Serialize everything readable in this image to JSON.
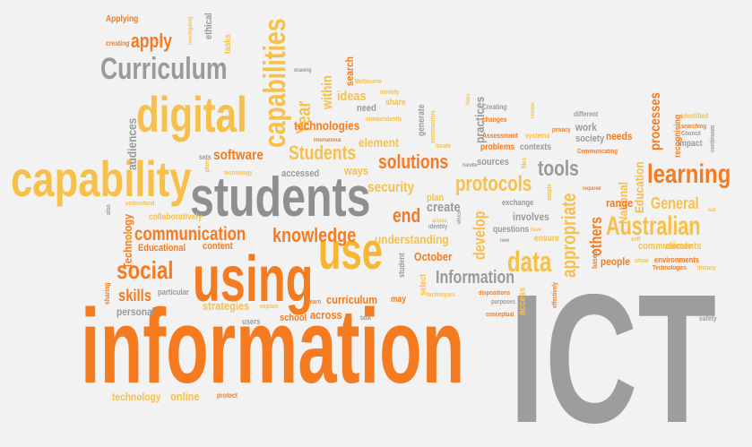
{
  "colors": {
    "background": "#f2f2f2",
    "orange": "#f47b20",
    "dark_orange": "#e8650a",
    "yellow": "#f7c04a",
    "light_yellow": "#f5d07a",
    "gray": "#9a9a9a",
    "dark_gray": "#8a8a8a"
  },
  "words": [
    {
      "text": "information",
      "color": "#f47b20"
    },
    {
      "text": "ICT",
      "color": "#9d9d9d"
    },
    {
      "text": "students",
      "color": "#8f8f8f"
    },
    {
      "text": "capability",
      "color": "#f7c04a"
    },
    {
      "text": "using",
      "color": "#f47b20"
    },
    {
      "text": "use",
      "color": "#f7b733"
    },
    {
      "text": "digital",
      "color": "#f7c04a"
    },
    {
      "text": "Curriculum",
      "color": "#9a9a9a"
    },
    {
      "text": "capabilities",
      "color": "#f7c04a"
    },
    {
      "text": "learning",
      "color": "#f47b20"
    },
    {
      "text": "Australian",
      "color": "#f7c04a"
    },
    {
      "text": "data",
      "color": "#f7c04a"
    },
    {
      "text": "social",
      "color": "#f47b20"
    },
    {
      "text": "solutions",
      "color": "#f47b20"
    },
    {
      "text": "knowledge",
      "color": "#f47b20"
    },
    {
      "text": "communication",
      "color": "#f47b20"
    },
    {
      "text": "protocols",
      "color": "#f7c04a"
    },
    {
      "text": "tools",
      "color": "#9a9a9a"
    },
    {
      "text": "Information",
      "color": "#9a9a9a"
    },
    {
      "text": "Students",
      "color": "#f7c04a"
    },
    {
      "text": "appropriate",
      "color": "#f7c04a"
    },
    {
      "text": "software",
      "color": "#f47b20"
    },
    {
      "text": "security",
      "color": "#f7c04a"
    },
    {
      "text": "end",
      "color": "#f47b20"
    },
    {
      "text": "apply",
      "color": "#f47b20"
    },
    {
      "text": "others",
      "color": "#f47b20"
    },
    {
      "text": "General",
      "color": "#f7c04a"
    },
    {
      "text": "develop",
      "color": "#f7c04a"
    },
    {
      "text": "skills",
      "color": "#f47b20"
    },
    {
      "text": "Year",
      "color": "#f7c04a"
    },
    {
      "text": "processes",
      "color": "#f47b20"
    },
    {
      "text": "Education",
      "color": "#f7c04a"
    },
    {
      "text": "National",
      "color": "#f7c04a"
    },
    {
      "text": "technologies",
      "color": "#f47b20"
    },
    {
      "text": "create",
      "color": "#9a9a9a"
    },
    {
      "text": "understanding",
      "color": "#f7c04a"
    },
    {
      "text": "curriculum",
      "color": "#f47b20"
    },
    {
      "text": "across",
      "color": "#f47b20"
    },
    {
      "text": "strategies",
      "color": "#f7c04a"
    },
    {
      "text": "online",
      "color": "#f7c04a"
    },
    {
      "text": "technology",
      "color": "#f7c04a"
    },
    {
      "text": "personal",
      "color": "#9a9a9a"
    },
    {
      "text": "Technology",
      "color": "#f47b20"
    },
    {
      "text": "Educational",
      "color": "#f47b20"
    },
    {
      "text": "collaboratively",
      "color": "#f7c04a"
    },
    {
      "text": "content",
      "color": "#f47b20"
    },
    {
      "text": "audiences",
      "color": "#9a9a9a"
    },
    {
      "text": "within",
      "color": "#f7c04a"
    },
    {
      "text": "ideas",
      "color": "#f7c04a"
    },
    {
      "text": "element",
      "color": "#f7c04a"
    },
    {
      "text": "practices",
      "color": "#9a9a9a"
    },
    {
      "text": "October",
      "color": "#f47b20"
    },
    {
      "text": "involves",
      "color": "#9a9a9a"
    },
    {
      "text": "range",
      "color": "#f47b20"
    },
    {
      "text": "people",
      "color": "#f47b20"
    },
    {
      "text": "communicate",
      "color": "#f7c04a"
    },
    {
      "text": "elements",
      "color": "#f7c04a"
    },
    {
      "text": "environments",
      "color": "#f47b20"
    },
    {
      "text": "needs",
      "color": "#f47b20"
    },
    {
      "text": "society",
      "color": "#9a9a9a"
    },
    {
      "text": "work",
      "color": "#9a9a9a"
    },
    {
      "text": "impact",
      "color": "#9a9a9a"
    },
    {
      "text": "recognising",
      "color": "#f47b20"
    },
    {
      "text": "sources",
      "color": "#9a9a9a"
    },
    {
      "text": "contexts",
      "color": "#9a9a9a"
    },
    {
      "text": "problems",
      "color": "#f47b20"
    },
    {
      "text": "ways",
      "color": "#f7c04a"
    },
    {
      "text": "accessed",
      "color": "#9a9a9a"
    },
    {
      "text": "need",
      "color": "#9a9a9a"
    },
    {
      "text": "ethical",
      "color": "#9a9a9a"
    },
    {
      "text": "search",
      "color": "#f47b20"
    },
    {
      "text": "share",
      "color": "#f7c04a"
    },
    {
      "text": "plan",
      "color": "#f7c04a"
    },
    {
      "text": "generate",
      "color": "#9a9a9a"
    },
    {
      "text": "questions",
      "color": "#9a9a9a"
    },
    {
      "text": "exchange",
      "color": "#9a9a9a"
    },
    {
      "text": "ensure",
      "color": "#f7c04a"
    },
    {
      "text": "access",
      "color": "#f7c04a"
    },
    {
      "text": "select",
      "color": "#f7c04a"
    },
    {
      "text": "may",
      "color": "#f47b20"
    },
    {
      "text": "school",
      "color": "#f47b20"
    },
    {
      "text": "users",
      "color": "#9a9a9a"
    },
    {
      "text": "particular",
      "color": "#9a9a9a"
    },
    {
      "text": "sharing",
      "color": "#f47b20"
    },
    {
      "text": "protect",
      "color": "#f47b20"
    },
    {
      "text": "safety",
      "color": "#9a9a9a"
    },
    {
      "text": "Applying",
      "color": "#f47b20"
    },
    {
      "text": "creating",
      "color": "#f47b20"
    },
    {
      "text": "tasks",
      "color": "#f7c04a"
    },
    {
      "text": "Creating",
      "color": "#9a9a9a"
    },
    {
      "text": "changes",
      "color": "#f47b20"
    },
    {
      "text": "different",
      "color": "#9a9a9a"
    },
    {
      "text": "Assessment",
      "color": "#f47b20"
    },
    {
      "text": "systems",
      "color": "#f7c04a"
    },
    {
      "text": "Communicating",
      "color": "#f47b20"
    },
    {
      "text": "identified",
      "color": "#f7c04a"
    },
    {
      "text": "searching",
      "color": "#f47b20"
    },
    {
      "text": "Council",
      "color": "#9a9a9a"
    },
    {
      "text": "continuum",
      "color": "#9a9a9a"
    },
    {
      "text": "privacy",
      "color": "#f47b20"
    },
    {
      "text": "Melbourne",
      "color": "#f7c04a"
    },
    {
      "text": "identify",
      "color": "#f7c04a"
    },
    {
      "text": "independently",
      "color": "#f7c04a"
    },
    {
      "text": "drawing",
      "color": "#9a9a9a"
    },
    {
      "text": "investigating",
      "color": "#f7c04a"
    },
    {
      "text": "International",
      "color": "#f47b20"
    },
    {
      "text": "sets",
      "color": "#9a9a9a"
    },
    {
      "text": "technology",
      "color": "#f7c04a"
    },
    {
      "text": "plans",
      "color": "#f7c04a"
    },
    {
      "text": "also",
      "color": "#9a9a9a"
    },
    {
      "text": "understand",
      "color": "#f7c04a"
    },
    {
      "text": "area",
      "color": "#f7c04a"
    },
    {
      "text": "locate",
      "color": "#f7c04a"
    },
    {
      "text": "identity",
      "color": "#9a9a9a"
    },
    {
      "text": "communities",
      "color": "#f7c04a"
    },
    {
      "text": "learn",
      "color": "#f47b20"
    },
    {
      "text": "explain",
      "color": "#f7c04a"
    },
    {
      "text": "student",
      "color": "#9a9a9a"
    },
    {
      "text": "task",
      "color": "#9a9a9a"
    },
    {
      "text": "techniques",
      "color": "#f7c04a"
    },
    {
      "text": "dispositions",
      "color": "#f47b20"
    },
    {
      "text": "purposes",
      "color": "#9a9a9a"
    },
    {
      "text": "conceptual",
      "color": "#f47b20"
    },
    {
      "text": "effectively",
      "color": "#f47b20"
    },
    {
      "text": "based",
      "color": "#f47b20"
    },
    {
      "text": "Technologies",
      "color": "#f47b20"
    },
    {
      "text": "literacy",
      "color": "#f7c04a"
    },
    {
      "text": "show",
      "color": "#f7c04a"
    },
    {
      "text": "self",
      "color": "#f7c04a"
    },
    {
      "text": "required",
      "color": "#f47b20"
    },
    {
      "text": "call",
      "color": "#f7c04a"
    },
    {
      "text": "new",
      "color": "#9a9a9a"
    },
    {
      "text": "have",
      "color": "#f7c04a"
    },
    {
      "text": "simple",
      "color": "#f7c04a"
    },
    {
      "text": "files",
      "color": "#f7c04a"
    },
    {
      "text": "ethics",
      "color": "#9a9a9a"
    },
    {
      "text": "across",
      "color": "#f7c04a"
    },
    {
      "text": "handle",
      "color": "#9a9a9a"
    },
    {
      "text": "Years",
      "color": "#f7c04a"
    },
    {
      "text": "choose",
      "color": "#f7c04a"
    }
  ]
}
